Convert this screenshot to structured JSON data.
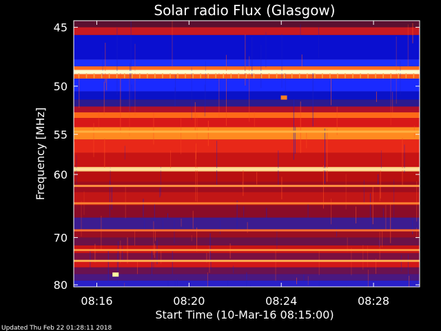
{
  "chart_data": {
    "type": "heatmap",
    "title": "Solar radio Flux (Glasgow)",
    "xlabel": "Start Time (10-Mar-16 08:15:00)",
    "ylabel": "Frequency [MHz]",
    "x_ticks": [
      "08:16",
      "08:20",
      "08:24",
      "08:28"
    ],
    "x_tick_minutes": [
      1,
      5,
      9,
      13
    ],
    "xlim_minutes": [
      0,
      15
    ],
    "y_ticks": [
      45,
      50,
      55,
      60,
      70,
      80
    ],
    "ylim": [
      44.5,
      80.5
    ],
    "y_scale": "reciprocal",
    "grid": false,
    "bands": [
      {
        "f_start": 44.5,
        "f_end": 45.0,
        "color": "#5a1030"
      },
      {
        "f_start": 45.0,
        "f_end": 45.6,
        "color": "#c81a22"
      },
      {
        "f_start": 45.6,
        "f_end": 47.6,
        "color": "#0a0fd0"
      },
      {
        "f_start": 47.6,
        "f_end": 48.2,
        "color": "#1a30ff"
      },
      {
        "f_start": 48.2,
        "f_end": 48.5,
        "color": "#ff7020"
      },
      {
        "f_start": 48.5,
        "f_end": 48.9,
        "color": "#fff0c0"
      },
      {
        "f_start": 48.9,
        "f_end": 49.3,
        "color": "#ff6018"
      },
      {
        "f_start": 49.3,
        "f_end": 50.5,
        "color": "#1a2aff"
      },
      {
        "f_start": 50.5,
        "f_end": 51.3,
        "color": "#0a12c8"
      },
      {
        "f_start": 51.3,
        "f_end": 52.0,
        "color": "#2a1a90"
      },
      {
        "f_start": 52.0,
        "f_end": 52.6,
        "color": "#b0102a"
      },
      {
        "f_start": 52.6,
        "f_end": 53.2,
        "color": "#ff6a18"
      },
      {
        "f_start": 53.2,
        "f_end": 54.2,
        "color": "#d81818"
      },
      {
        "f_start": 54.2,
        "f_end": 55.6,
        "color": "#ff8a20"
      },
      {
        "f_start": 55.6,
        "f_end": 57.2,
        "color": "#e82818"
      },
      {
        "f_start": 57.2,
        "f_end": 59.0,
        "color": "#c81414"
      },
      {
        "f_start": 59.0,
        "f_end": 59.6,
        "color": "#ffd080"
      },
      {
        "f_start": 59.6,
        "f_end": 61.0,
        "color": "#b81010"
      },
      {
        "f_start": 61.0,
        "f_end": 62.5,
        "color": "#a00e1e"
      },
      {
        "f_start": 62.5,
        "f_end": 64.5,
        "color": "#c21616"
      },
      {
        "f_start": 64.5,
        "f_end": 66.5,
        "color": "#8a0c28"
      },
      {
        "f_start": 66.5,
        "f_end": 68.5,
        "color": "#3c1c90"
      },
      {
        "f_start": 68.5,
        "f_end": 70.0,
        "color": "#9a0e22"
      },
      {
        "f_start": 70.0,
        "f_end": 71.5,
        "color": "#6a1248"
      },
      {
        "f_start": 71.5,
        "f_end": 73.0,
        "color": "#c81414"
      },
      {
        "f_start": 73.0,
        "f_end": 74.5,
        "color": "#7a1040"
      },
      {
        "f_start": 74.5,
        "f_end": 76.0,
        "color": "#d21818"
      },
      {
        "f_start": 76.0,
        "f_end": 77.5,
        "color": "#6a1250"
      },
      {
        "f_start": 77.5,
        "f_end": 79.0,
        "color": "#4a1880"
      },
      {
        "f_start": 79.0,
        "f_end": 80.5,
        "color": "#2a20c8"
      }
    ],
    "lines": [
      {
        "f": 48.7,
        "color": "#ffffd0"
      },
      {
        "f": 54.7,
        "color": "#ffb040"
      },
      {
        "f": 59.3,
        "color": "#ffe0a0"
      },
      {
        "f": 61.6,
        "color": "#ff9040"
      },
      {
        "f": 64.2,
        "color": "#ff8030"
      },
      {
        "f": 68.7,
        "color": "#ff7030"
      },
      {
        "f": 72.4,
        "color": "#ff9040"
      },
      {
        "f": 74.6,
        "color": "#ffb050"
      }
    ],
    "hotspots": [
      {
        "t_minutes": 1.8,
        "f": 77.6,
        "color": "#ffffa0"
      },
      {
        "t_minutes": 9.1,
        "f": 51.1,
        "color": "#ff8020"
      }
    ],
    "colors": {
      "background": "#000000",
      "axis": "#ffffff"
    }
  },
  "footer": {
    "updated": "Updated Thu Feb 22 01:28:11 2018"
  }
}
